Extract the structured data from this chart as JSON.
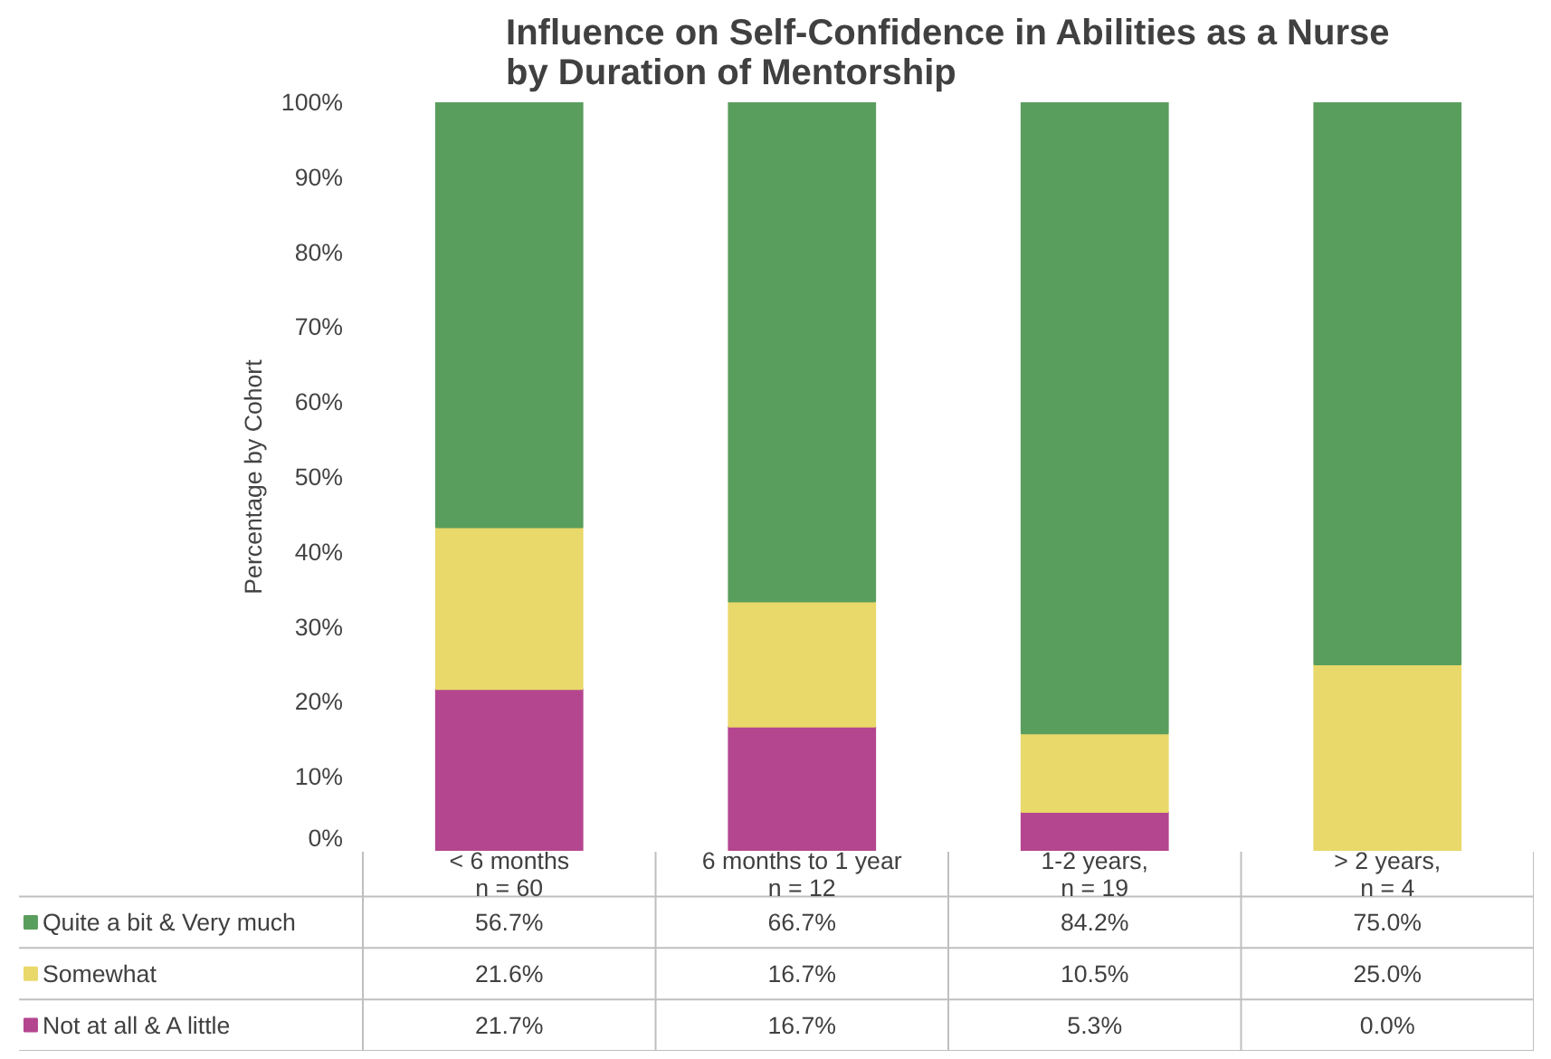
{
  "chart_data": {
    "type": "bar",
    "stacked": true,
    "title": "Influence on Self-Confidence in Abilities as a Nurse\nby Duration of Mentorship",
    "ylabel": "Percentage by Cohort",
    "categories": [
      "< 6 months\nn = 60",
      "6 months to 1 year\nn = 12",
      "1-2 years,\nn = 19",
      "> 2 years,\nn = 4"
    ],
    "series": [
      {
        "name": "Not at all & A little",
        "color": "#b4468f",
        "values": [
          21.7,
          16.7,
          5.3,
          0.0
        ],
        "value_labels": [
          "21.7%",
          "16.7%",
          "5.3%",
          "0.0%"
        ]
      },
      {
        "name": "Somewhat",
        "color": "#e9d86a",
        "values": [
          21.6,
          16.7,
          10.5,
          25.0
        ],
        "value_labels": [
          "21.6%",
          "16.7%",
          "10.5%",
          "25.0%"
        ]
      },
      {
        "name": "Quite a bit & Very much",
        "color": "#5a9e5e",
        "values": [
          56.7,
          66.7,
          84.2,
          75.0
        ],
        "value_labels": [
          "56.7%",
          "66.7%",
          "84.2%",
          "75.0%"
        ]
      }
    ],
    "ylim": [
      0,
      100
    ],
    "yticks": [
      {
        "value": 0,
        "label": "0%"
      },
      {
        "value": 10,
        "label": "10%"
      },
      {
        "value": 20,
        "label": "20%"
      },
      {
        "value": 30,
        "label": "30%"
      },
      {
        "value": 40,
        "label": "40%"
      },
      {
        "value": 50,
        "label": "50%"
      },
      {
        "value": 60,
        "label": "60%"
      },
      {
        "value": 70,
        "label": "70%"
      },
      {
        "value": 80,
        "label": "80%"
      },
      {
        "value": 90,
        "label": "90%"
      },
      {
        "value": 100,
        "label": "100%"
      }
    ],
    "grid": false,
    "legend": "bottom left"
  }
}
